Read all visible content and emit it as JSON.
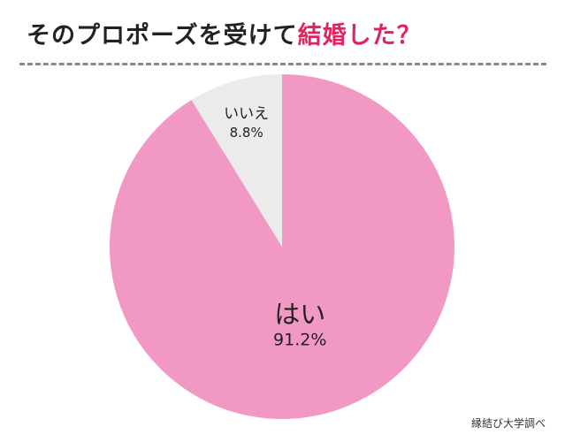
{
  "title": {
    "prefix": "そのプロポーズを受けて",
    "accent": "結婚した？"
  },
  "source": "縁結び大学調べ",
  "colors": {
    "title_accent": "#e0245e",
    "divider": "#8a8a8a"
  },
  "chart_data": {
    "type": "pie",
    "start": "12 o'clock",
    "direction": "clockwise",
    "slices": [
      {
        "label": "はい",
        "value": 91.2,
        "value_label": "91.2%",
        "color": "#f199c4"
      },
      {
        "label": "いいえ",
        "value": 8.8,
        "value_label": "8.8%",
        "color": "#ebebeb"
      }
    ]
  }
}
